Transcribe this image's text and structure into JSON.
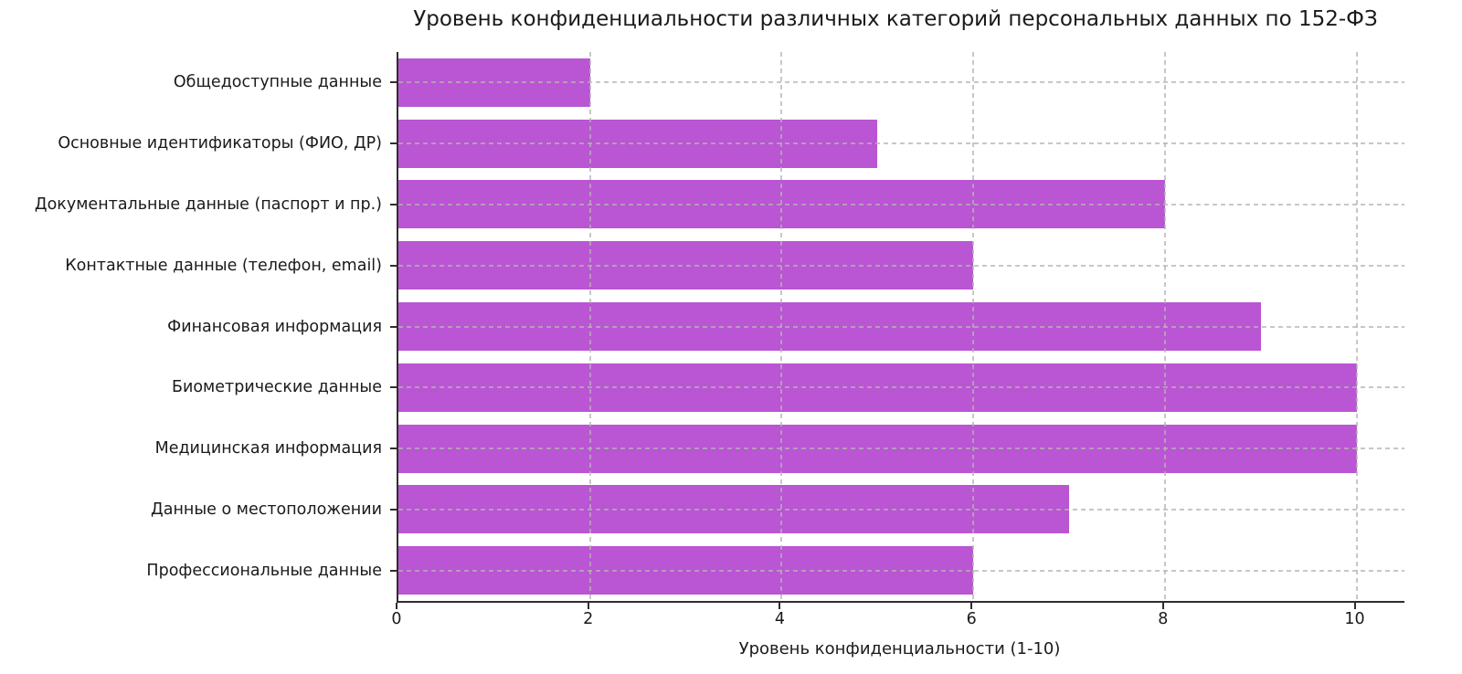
{
  "chart_data": {
    "type": "bar",
    "orientation": "horizontal",
    "title": "Уровень конфиденциальности различных категорий персональных данных по 152-ФЗ",
    "xlabel": "Уровень конфиденциальности (1-10)",
    "ylabel": "",
    "categories": [
      "Общедоступные данные",
      "Основные идентификаторы (ФИО, ДР)",
      "Документальные данные (паспорт и пр.)",
      "Контактные данные (телефон, email)",
      "Финансовая информация",
      "Биометрические данные",
      "Медицинская информация",
      "Данные о местоположении",
      "Профессиональные данные"
    ],
    "values": [
      2,
      5,
      8,
      6,
      9,
      10,
      10,
      7,
      6
    ],
    "xlim": [
      0,
      10.5
    ],
    "xticks": [
      0,
      2,
      4,
      6,
      8,
      10
    ],
    "bar_color": "#BA55D3",
    "grid": true,
    "grid_style": "dashed",
    "grid_color": "#c9c9c9",
    "legend_position": "none",
    "background_color": "#ffffff"
  }
}
